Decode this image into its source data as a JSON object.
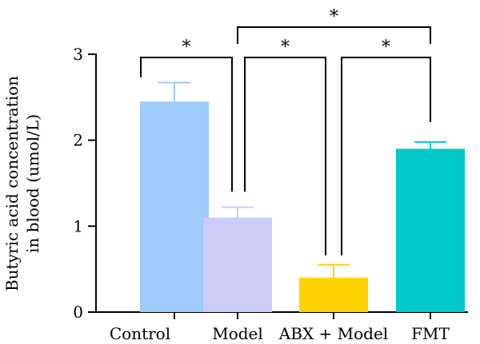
{
  "chart_data": {
    "type": "bar",
    "title": "",
    "xlabel": "",
    "ylabel_lines": [
      "Butyric acid concentration",
      "in blood (umol/L)"
    ],
    "ylim": [
      0,
      3
    ],
    "yticks": [
      0,
      1,
      2,
      3
    ],
    "grid": false,
    "categories": [
      "Control",
      "Model",
      "ABX + Model",
      "FMT"
    ],
    "values": [
      2.45,
      1.1,
      0.4,
      1.9
    ],
    "errors": [
      0.22,
      0.12,
      0.15,
      0.08
    ],
    "colors": [
      "#9ECBFA",
      "#CDCBF8",
      "#FFD200",
      "#00C9C7"
    ],
    "significance": [
      {
        "from": 0,
        "to": 1,
        "label": "*"
      },
      {
        "from": 1,
        "to": 2,
        "label": "*"
      },
      {
        "from": 2,
        "to": 3,
        "label": "*"
      },
      {
        "from": 1,
        "to": 3,
        "label": "*"
      }
    ]
  }
}
